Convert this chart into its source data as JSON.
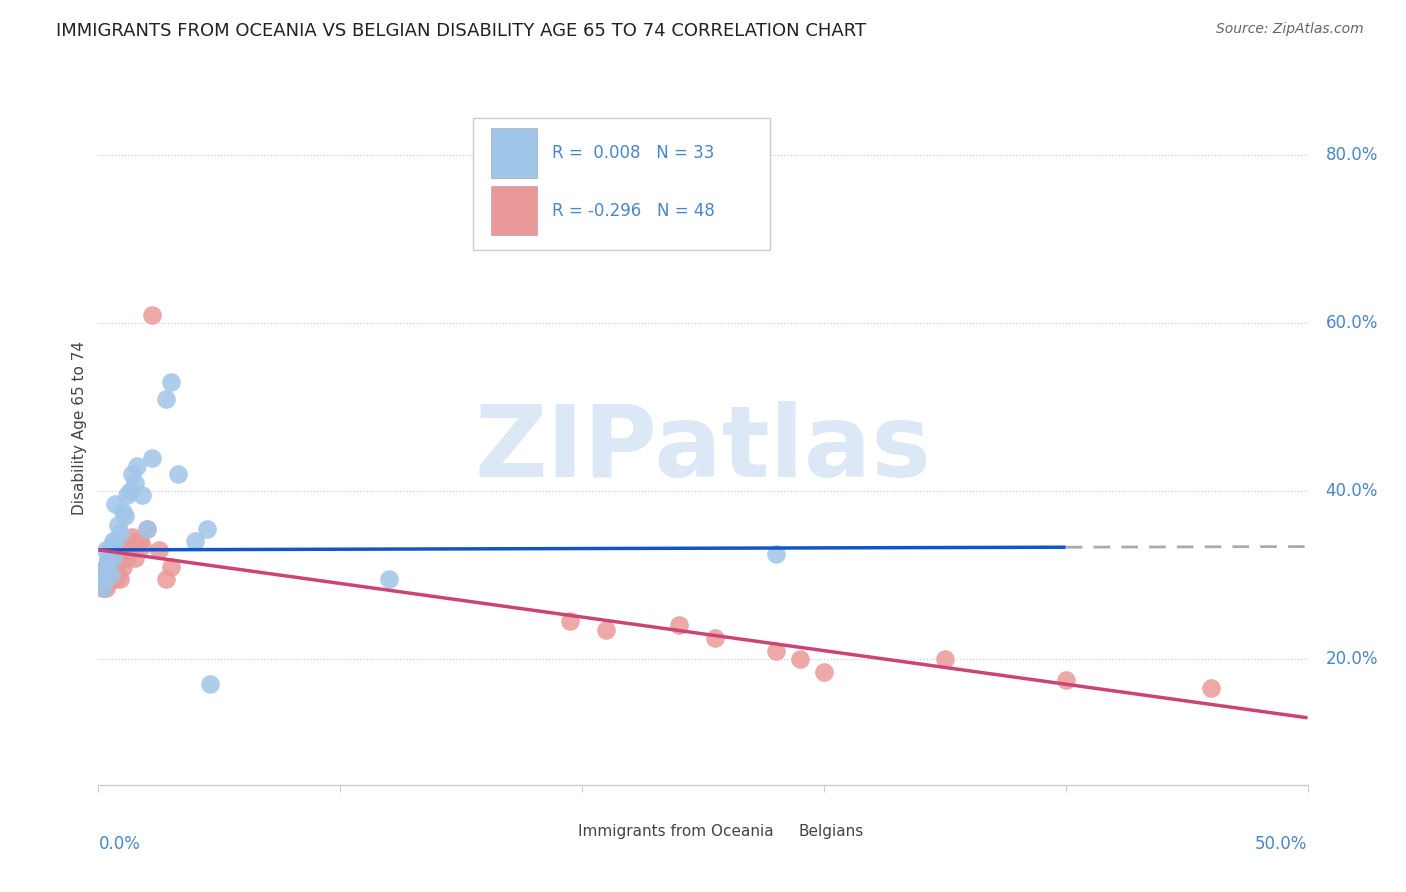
{
  "title": "IMMIGRANTS FROM OCEANIA VS BELGIAN DISABILITY AGE 65 TO 74 CORRELATION CHART",
  "source": "Source: ZipAtlas.com",
  "ylabel": "Disability Age 65 to 74",
  "yaxis_labels": [
    "20.0%",
    "40.0%",
    "60.0%",
    "80.0%"
  ],
  "yaxis_values": [
    0.2,
    0.4,
    0.6,
    0.8
  ],
  "r_blue": "R =  0.008",
  "n_blue": "N = 33",
  "r_pink": "R = -0.296",
  "n_pink": "N = 48",
  "legend_blue": "Immigrants from Oceania",
  "legend_pink": "Belgians",
  "blue_color": "#9fc5e8",
  "pink_color": "#ea9999",
  "blue_line_color": "#1155cc",
  "pink_line_color": "#cc4477",
  "text_color": "#4a86c8",
  "title_color": "#222222",
  "blue_points_x": [
    0.001,
    0.002,
    0.002,
    0.003,
    0.003,
    0.004,
    0.004,
    0.005,
    0.005,
    0.006,
    0.006,
    0.007,
    0.007,
    0.008,
    0.009,
    0.01,
    0.011,
    0.012,
    0.013,
    0.014,
    0.015,
    0.016,
    0.018,
    0.02,
    0.022,
    0.028,
    0.03,
    0.033,
    0.04,
    0.045,
    0.046,
    0.12,
    0.28
  ],
  "blue_points_y": [
    0.295,
    0.3,
    0.285,
    0.31,
    0.33,
    0.305,
    0.32,
    0.3,
    0.335,
    0.34,
    0.32,
    0.34,
    0.385,
    0.36,
    0.35,
    0.375,
    0.37,
    0.395,
    0.4,
    0.42,
    0.41,
    0.43,
    0.395,
    0.355,
    0.44,
    0.51,
    0.53,
    0.42,
    0.34,
    0.355,
    0.17,
    0.295,
    0.325
  ],
  "pink_points_x": [
    0.001,
    0.001,
    0.002,
    0.002,
    0.003,
    0.003,
    0.003,
    0.004,
    0.004,
    0.004,
    0.005,
    0.005,
    0.005,
    0.006,
    0.006,
    0.006,
    0.007,
    0.007,
    0.007,
    0.008,
    0.008,
    0.009,
    0.009,
    0.01,
    0.01,
    0.011,
    0.012,
    0.013,
    0.014,
    0.015,
    0.016,
    0.017,
    0.018,
    0.02,
    0.022,
    0.025,
    0.028,
    0.03,
    0.195,
    0.21,
    0.24,
    0.255,
    0.28,
    0.29,
    0.3,
    0.35,
    0.4,
    0.46
  ],
  "pink_points_y": [
    0.295,
    0.305,
    0.285,
    0.3,
    0.31,
    0.295,
    0.285,
    0.305,
    0.29,
    0.315,
    0.3,
    0.32,
    0.295,
    0.31,
    0.33,
    0.295,
    0.305,
    0.325,
    0.295,
    0.315,
    0.3,
    0.33,
    0.295,
    0.31,
    0.325,
    0.335,
    0.32,
    0.33,
    0.345,
    0.32,
    0.34,
    0.34,
    0.335,
    0.355,
    0.61,
    0.33,
    0.295,
    0.31,
    0.245,
    0.235,
    0.24,
    0.225,
    0.21,
    0.2,
    0.185,
    0.2,
    0.175,
    0.165
  ],
  "xlim": [
    0.0,
    0.5
  ],
  "ylim": [
    0.05,
    0.9
  ],
  "blue_trend_x": [
    0.0,
    0.5
  ],
  "blue_trend_y": [
    0.33,
    0.334
  ],
  "blue_trend_solid_end_x": 0.4,
  "pink_trend_x": [
    0.0,
    0.5
  ],
  "pink_trend_y": [
    0.33,
    0.13
  ],
  "grid_color": "#cccccc",
  "grid_linestyle": ":",
  "watermark_text": "ZIPatlas",
  "watermark_color": "#dce8f5"
}
